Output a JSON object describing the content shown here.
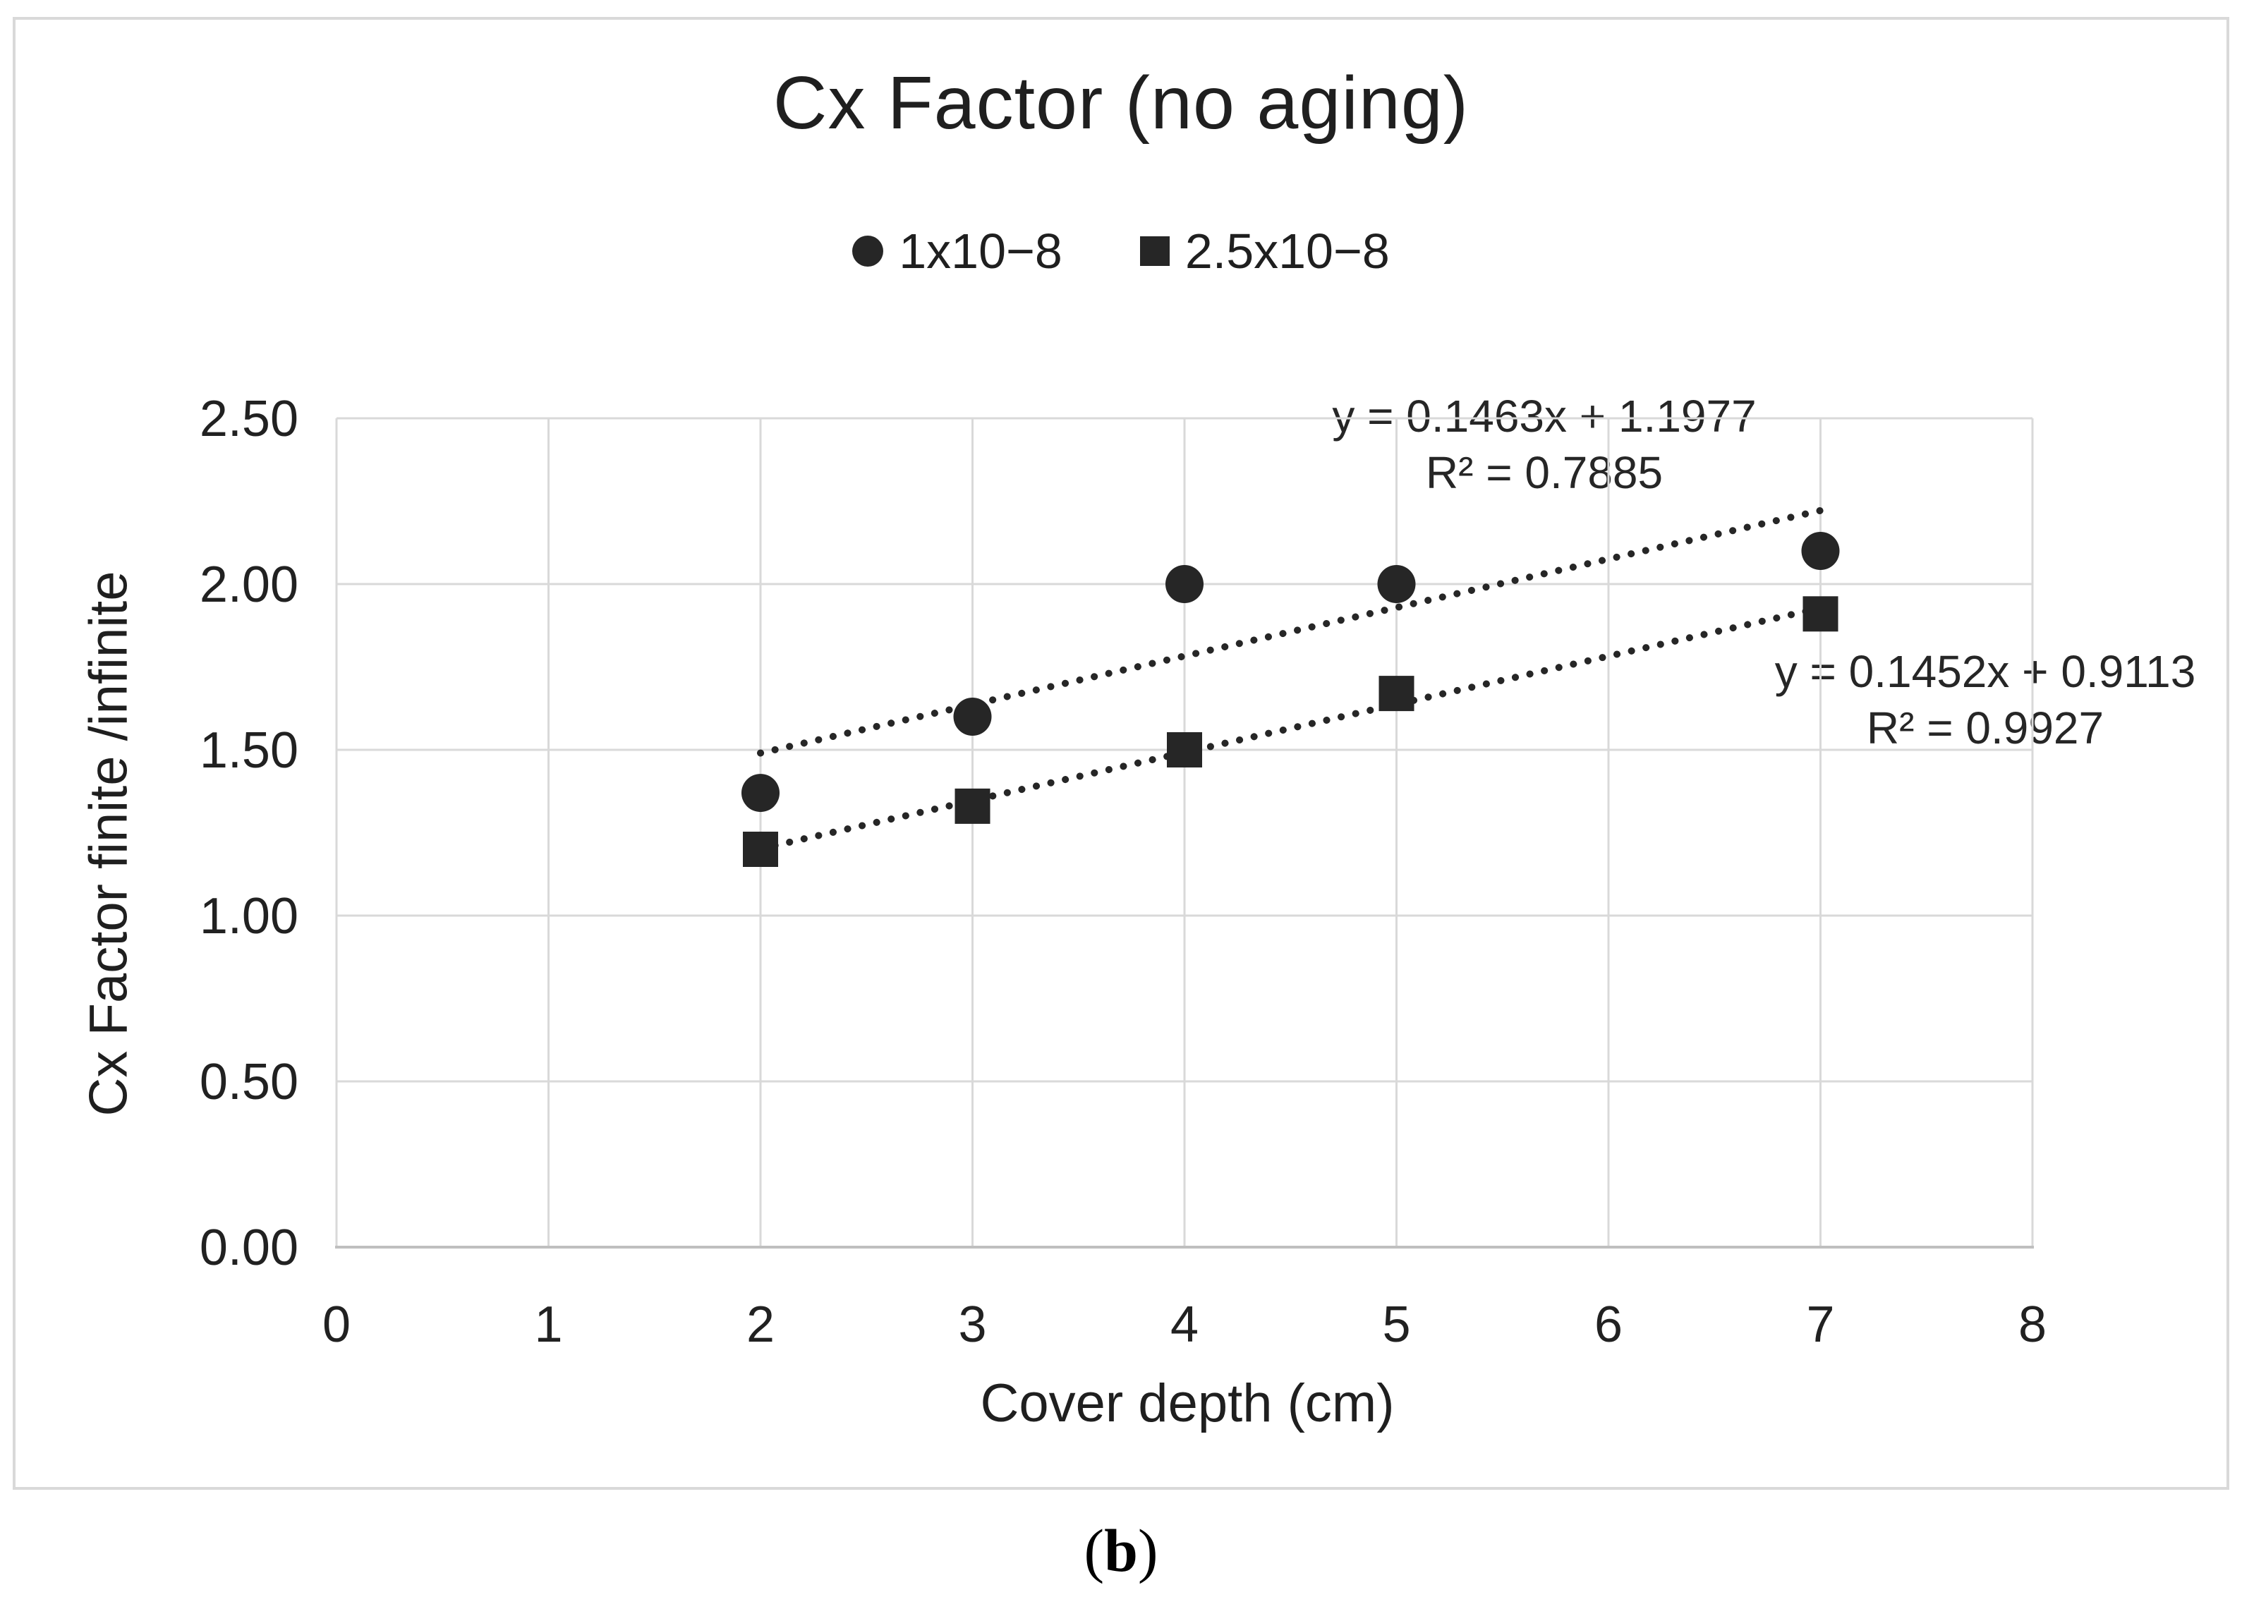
{
  "figure": {
    "caption": {
      "open": "(",
      "letter": "b",
      "close": ")"
    }
  },
  "chart_data": {
    "type": "scatter",
    "title": "Cx Factor (no aging)",
    "xlabel": "Cover depth (cm)",
    "ylabel": "Cx Factor finite /infinite",
    "xlim": [
      0,
      8
    ],
    "ylim": [
      0,
      2.5
    ],
    "x_ticks": [
      "0",
      "1",
      "2",
      "3",
      "4",
      "5",
      "6",
      "7",
      "8"
    ],
    "y_ticks": [
      "0.00",
      "0.50",
      "1.00",
      "1.50",
      "2.00",
      "2.50"
    ],
    "grid": true,
    "legend_position": "top",
    "colors": {
      "marker": "#262626",
      "trendline": "#262626",
      "gridline": "#d9d9d9",
      "axis_line": "#bfbfbf",
      "text": "#1f1f1f"
    },
    "series": [
      {
        "name": "1x10−8",
        "marker": "circle",
        "x": [
          2,
          3,
          4,
          5,
          7
        ],
        "y": [
          1.37,
          1.6,
          2.0,
          2.0,
          2.1
        ],
        "trendline": {
          "style": "dotted",
          "slope": 0.1463,
          "intercept": 1.1977,
          "r2": 0.7885,
          "x_start": 2,
          "x_end": 7,
          "equation_label": "y = 0.1463x + 1.1977",
          "r2_label": "R² = 0.7885"
        }
      },
      {
        "name": "2.5x10−8",
        "marker": "square",
        "x": [
          2,
          3,
          4,
          5,
          7
        ],
        "y": [
          1.2,
          1.33,
          1.5,
          1.67,
          1.91
        ],
        "trendline": {
          "style": "dotted",
          "slope": 0.1452,
          "intercept": 0.9113,
          "r2": 0.9927,
          "x_start": 2,
          "x_end": 7,
          "equation_label": "y = 0.1452x + 0.9113",
          "r2_label": "R² = 0.9927"
        }
      }
    ]
  }
}
